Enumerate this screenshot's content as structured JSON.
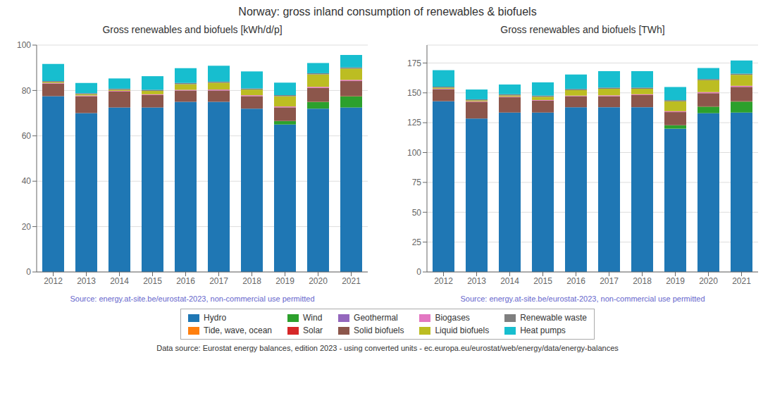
{
  "title": "Norway: gross inland consumption of renewables & biofuels",
  "legend": "bottom",
  "annotations": [
    {
      "text": "Data source: Eurostat energy balances, edition 2023 - using converted units - ec.europa.eu/eurostat/web/energy/data/energy-balances"
    }
  ],
  "chart_data": [
    {
      "type": "bar",
      "title": "Gross renewables and biofuels [kWh/d/p]",
      "stacked": true,
      "grid": true,
      "categories": [
        "2012",
        "2013",
        "2014",
        "2015",
        "2016",
        "2017",
        "2018",
        "2019",
        "2020",
        "2021"
      ],
      "series": [
        {
          "name": "Hydro",
          "color": "#1f77b4",
          "values": [
            77.5,
            70.0,
            72.5,
            72.5,
            75.0,
            75.0,
            72.0,
            65.0,
            72.0,
            72.5
          ]
        },
        {
          "name": "Tide, wave, ocean",
          "color": "#ff7f0e",
          "values": [
            0.0,
            0.0,
            0.0,
            0.0,
            0.0,
            0.0,
            0.0,
            0.0,
            0.0,
            0.0
          ]
        },
        {
          "name": "Wind",
          "color": "#2ca02c",
          "values": [
            0.0,
            0.0,
            0.0,
            0.0,
            0.0,
            0.0,
            0.0,
            1.5,
            3.0,
            5.0
          ]
        },
        {
          "name": "Solar",
          "color": "#d62728",
          "values": [
            0.0,
            0.0,
            0.0,
            0.0,
            0.0,
            0.0,
            0.0,
            0.05,
            0.1,
            0.15
          ]
        },
        {
          "name": "Geothermal",
          "color": "#9467bd",
          "values": [
            0.0,
            0.0,
            0.0,
            0.0,
            0.0,
            0.0,
            0.0,
            0.0,
            0.0,
            0.0
          ]
        },
        {
          "name": "Solid biofuels",
          "color": "#8c564b",
          "values": [
            5.5,
            7.5,
            7.0,
            5.5,
            5.0,
            5.0,
            5.5,
            6.0,
            6.0,
            6.5
          ]
        },
        {
          "name": "Biogases",
          "color": "#e377c2",
          "values": [
            0.2,
            0.3,
            0.3,
            0.3,
            0.3,
            0.4,
            0.4,
            0.4,
            0.5,
            0.5
          ]
        },
        {
          "name": "Liquid biofuels",
          "color": "#bcbd22",
          "values": [
            0.5,
            0.5,
            0.5,
            1.5,
            2.5,
            3.0,
            2.5,
            4.5,
            5.5,
            5.0
          ]
        },
        {
          "name": "Renewable waste",
          "color": "#7f7f7f",
          "values": [
            0.5,
            0.5,
            0.5,
            0.5,
            0.5,
            0.5,
            0.5,
            0.5,
            0.5,
            0.5
          ]
        },
        {
          "name": "Heat pumps",
          "color": "#17becf",
          "values": [
            7.5,
            4.5,
            4.5,
            6.0,
            6.5,
            7.0,
            7.5,
            5.5,
            4.5,
            5.5
          ]
        }
      ],
      "ylim": [
        0,
        100
      ],
      "yticks": [
        0,
        20,
        40,
        60,
        80,
        100
      ],
      "annotations": [
        {
          "text": "Source: energy.at-site.be/eurostat-2023, non-commercial use permitted",
          "color": "#6666cc"
        }
      ]
    },
    {
      "type": "bar",
      "title": "Gross renewables and biofuels [TWh]",
      "stacked": true,
      "grid": true,
      "categories": [
        "2012",
        "2013",
        "2014",
        "2015",
        "2016",
        "2017",
        "2018",
        "2019",
        "2020",
        "2021"
      ],
      "series": [
        {
          "name": "Hydro",
          "color": "#1f77b4",
          "values": [
            143.0,
            128.5,
            133.5,
            133.5,
            138.0,
            138.0,
            138.0,
            120.0,
            133.0,
            133.5
          ]
        },
        {
          "name": "Tide, wave, ocean",
          "color": "#ff7f0e",
          "values": [
            0.0,
            0.0,
            0.0,
            0.0,
            0.0,
            0.0,
            0.0,
            0.0,
            0.0,
            0.0
          ]
        },
        {
          "name": "Wind",
          "color": "#2ca02c",
          "values": [
            0.0,
            0.0,
            0.0,
            0.0,
            0.0,
            0.0,
            0.0,
            2.8,
            5.5,
            9.2
          ]
        },
        {
          "name": "Solar",
          "color": "#d62728",
          "values": [
            0.0,
            0.0,
            0.0,
            0.0,
            0.0,
            0.0,
            0.0,
            0.1,
            0.2,
            0.3
          ]
        },
        {
          "name": "Geothermal",
          "color": "#9467bd",
          "values": [
            0.0,
            0.0,
            0.0,
            0.0,
            0.0,
            0.0,
            0.0,
            0.0,
            0.0,
            0.0
          ]
        },
        {
          "name": "Solid biofuels",
          "color": "#8c564b",
          "values": [
            10.0,
            13.8,
            12.8,
            10.0,
            9.2,
            9.2,
            10.1,
            11.0,
            11.0,
            12.0
          ]
        },
        {
          "name": "Biogases",
          "color": "#e377c2",
          "values": [
            0.4,
            0.5,
            0.5,
            0.5,
            0.5,
            0.7,
            0.7,
            0.7,
            0.9,
            0.9
          ]
        },
        {
          "name": "Liquid biofuels",
          "color": "#bcbd22",
          "values": [
            0.9,
            0.9,
            1.0,
            2.7,
            4.6,
            5.5,
            4.6,
            8.3,
            10.0,
            9.2
          ]
        },
        {
          "name": "Renewable waste",
          "color": "#7f7f7f",
          "values": [
            0.9,
            0.9,
            1.0,
            1.0,
            1.0,
            1.0,
            1.0,
            1.0,
            1.0,
            1.0
          ]
        },
        {
          "name": "Heat pumps",
          "color": "#17becf",
          "values": [
            13.8,
            8.2,
            8.2,
            11.1,
            12.0,
            13.8,
            13.8,
            11.0,
            9.2,
            11.0
          ]
        }
      ],
      "ylim": [
        0,
        190
      ],
      "yticks": [
        0,
        25,
        50,
        75,
        100,
        125,
        150,
        175
      ],
      "annotations": [
        {
          "text": "Source: energy.at-site.be/eurostat-2023, non-commercial use permitted",
          "color": "#6666cc"
        }
      ]
    }
  ]
}
